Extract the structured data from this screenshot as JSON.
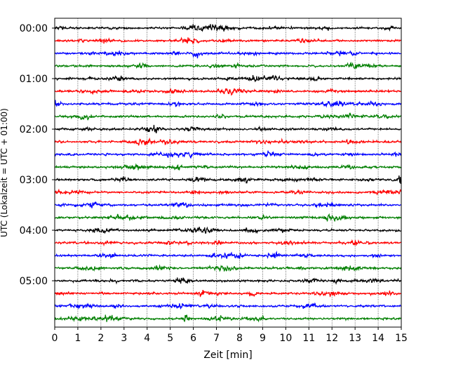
{
  "chart_data": {
    "type": "line",
    "title": "",
    "xlabel": "Zeit  [min]",
    "ylabel": "UTC (Lokalzeit = UTC + 01:00)",
    "xlim": [
      0,
      15
    ],
    "x_ticks": [
      "0",
      "1",
      "2",
      "3",
      "4",
      "5",
      "6",
      "7",
      "8",
      "9",
      "10",
      "11",
      "12",
      "13",
      "14",
      "15"
    ],
    "y_tick_labels": [
      "00:00",
      "01:00",
      "02:00",
      "03:00",
      "04:00",
      "05:00"
    ],
    "trace_start_times": [
      "00:00",
      "00:15",
      "00:30",
      "00:45",
      "01:00",
      "01:15",
      "01:30",
      "01:45",
      "02:00",
      "02:15",
      "02:30",
      "02:45",
      "03:00",
      "03:15",
      "03:30",
      "03:45",
      "04:00",
      "04:15",
      "04:30",
      "04:45",
      "05:00",
      "05:15",
      "05:30",
      "05:45"
    ],
    "trace_colors": [
      "#000000",
      "#ff0000",
      "#0000ff",
      "#007f00"
    ],
    "grid": "vertical dotted at each minute",
    "events": [
      {
        "trace_index": 18,
        "x_min": 9.6
      },
      {
        "trace_index": 21,
        "x_min": 6.4
      },
      {
        "trace_index": 23,
        "x_min": 5.7
      },
      {
        "trace_index": 12,
        "x_min": 15.0
      }
    ]
  }
}
